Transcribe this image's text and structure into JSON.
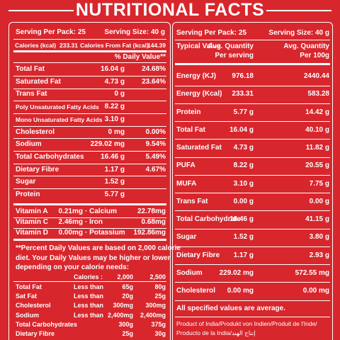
{
  "title": "NUTRITIONAL FACTS",
  "left": {
    "serving_per_pack": "Serving Per Pack: 25",
    "serving_size": "Serving Size: 40 g",
    "calories": [
      "Calories (kcal)",
      "233.31",
      "Calories From Fat (kcal)",
      "144.39"
    ],
    "daily_value_header": "% Daily Value**",
    "nutrients": [
      [
        "Total Fat",
        "16.04 g",
        "24.68%"
      ],
      [
        "Saturated Fat",
        "4.73 g",
        "23.64%"
      ],
      [
        "Trans Fat",
        "0 g"
      ],
      [
        "Poly Unsaturated Fatty Acids",
        "8.22 g"
      ],
      [
        "Mono Unsaturated Fatty Acids",
        "3.10 g"
      ],
      [
        "Cholesterol",
        "0 mg",
        "0.00%"
      ],
      [
        "Sodium",
        "229.02 mg",
        "9.54%"
      ],
      [
        "Total Carbohydrates",
        "16.46 g",
        "5.49%"
      ],
      [
        "Dietary Fibre",
        "1.17 g",
        "4.67%"
      ],
      [
        "Sugar",
        "1.52 g"
      ],
      [
        "Protein",
        "5.77 g"
      ]
    ],
    "vitamins": [
      [
        "Vitamin A",
        "0.21mg",
        "· Calcium",
        "22.78mg"
      ],
      [
        "Vitamin C",
        "2.46mg",
        "· Iron",
        "0.68mg"
      ],
      [
        "Vitamin D",
        "0.00mg",
        "· Potassium",
        "192.86mg"
      ]
    ],
    "footnote": [
      "**Percent Daily Values are based on 2,000 calorie",
      "diet. Your Daily Values may be higher or lower",
      "depending on your calorie needs:"
    ],
    "reference": {
      "header": [
        "Calories :",
        "2,000",
        "2,500"
      ],
      "rows": [
        [
          "Total Fat",
          "Less than",
          "65g",
          "80g"
        ],
        [
          "Sat Fat",
          "Less than",
          "20g",
          "25g"
        ],
        [
          "Cholesterol",
          "Less than",
          "300mg",
          "300mg"
        ],
        [
          "Sodium",
          "Less than",
          "2,400mg",
          "2,400mg"
        ],
        [
          "Total Carbohydrates",
          "300g",
          "375g"
        ],
        [
          "Dietary Fibre",
          "25g",
          "30g"
        ]
      ]
    }
  },
  "right": {
    "serving_per_pack": "Serving Per Pack: 25",
    "serving_size": "Serving Size: 40 g",
    "header": [
      [
        "Typical Value"
      ],
      [
        "Avg. Quantity",
        "Per serving"
      ],
      [
        "Avg. Quantity",
        "Per 100g"
      ]
    ],
    "rows": [
      [
        "Energy (KJ)",
        "976.18",
        "2440.44"
      ],
      [
        "Energy (Kcal)",
        "233.31",
        "583.28"
      ],
      [
        "Protein",
        "5.77 g",
        "14.42 g"
      ],
      [
        "Total Fat",
        "16.04 g",
        "40.10 g"
      ],
      [
        "Saturated Fat",
        "4.73 g",
        "11.82 g"
      ],
      [
        "PUFA",
        "8.22 g",
        "20.55 g"
      ],
      [
        "MUFA",
        "3.10 g",
        "7.75 g"
      ],
      [
        "Trans Fat",
        "0.00 g",
        "0.00 g"
      ],
      [
        "Total Carbohydrate",
        "16.46 g",
        "41.15 g"
      ],
      [
        "Sugar",
        "1.52 g",
        "3.80 g"
      ],
      [
        "Dietary Fibre",
        "1.17 g",
        "2.93 g"
      ],
      [
        "Sodium",
        "229.02 mg",
        "572.55 mg"
      ],
      [
        "Cholesterol",
        "0.00 mg",
        "0.00 mg"
      ]
    ],
    "note": "All specified values are average.",
    "origin": [
      "Product of India/Produkt von Indien/Produit de l'Inde/",
      "Producto de la India/إنتاج الهند"
    ]
  }
}
